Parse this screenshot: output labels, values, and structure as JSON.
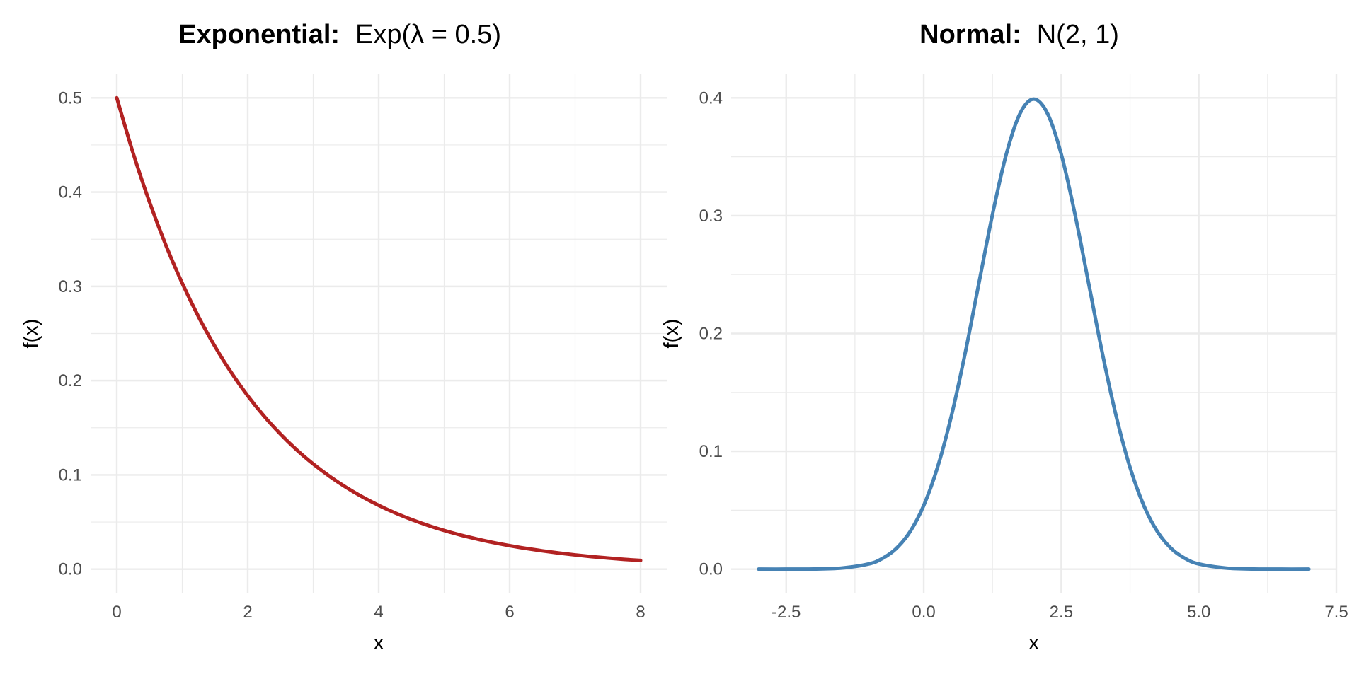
{
  "chart_data": [
    {
      "type": "line",
      "title": "Exponential:",
      "title_math": "Exp(λ = 0.5)",
      "xlabel": "x",
      "ylabel": "f(x)",
      "xlim": [
        -0.4,
        8.4
      ],
      "ylim": [
        -0.025,
        0.525
      ],
      "xticks": [
        0,
        2,
        4,
        6,
        8
      ],
      "xtick_labels": [
        "0",
        "2",
        "4",
        "6",
        "8"
      ],
      "yticks": [
        0.0,
        0.1,
        0.2,
        0.3,
        0.4,
        0.5
      ],
      "ytick_labels": [
        "0.0",
        "0.1",
        "0.2",
        "0.3",
        "0.4",
        "0.5"
      ],
      "grid": true,
      "legend": "none",
      "color": "#b22222",
      "series": [
        {
          "x": [
            0,
            0.25,
            0.5,
            0.75,
            1,
            1.25,
            1.5,
            1.75,
            2,
            2.25,
            2.5,
            2.75,
            3,
            3.25,
            3.5,
            3.75,
            4,
            4.25,
            4.5,
            4.75,
            5,
            5.25,
            5.5,
            5.75,
            6,
            6.25,
            6.5,
            6.75,
            7,
            7.25,
            7.5,
            7.75,
            8
          ],
          "y": [
            0.5,
            0.4412,
            0.3894,
            0.3436,
            0.3033,
            0.2676,
            0.2362,
            0.2084,
            0.1839,
            0.1623,
            0.1433,
            0.1264,
            0.1116,
            0.0985,
            0.0869,
            0.0767,
            0.0677,
            0.0597,
            0.0527,
            0.0465,
            0.041,
            0.0362,
            0.032,
            0.0282,
            0.0249,
            0.022,
            0.0194,
            0.0171,
            0.0151,
            0.0133,
            0.0118,
            0.0104,
            0.0092
          ]
        }
      ]
    },
    {
      "type": "line",
      "title": "Normal:",
      "title_math": "N(2, 1)",
      "xlabel": "x",
      "ylabel": "f(x)",
      "xlim": [
        -3.5,
        7.5
      ],
      "ylim": [
        -0.02,
        0.42
      ],
      "xticks": [
        -2.5,
        0.0,
        2.5,
        5.0,
        7.5
      ],
      "xtick_labels": [
        "-2.5",
        "0.0",
        "2.5",
        "5.0",
        "7.5"
      ],
      "yticks": [
        0.0,
        0.1,
        0.2,
        0.3,
        0.4
      ],
      "ytick_labels": [
        "0.0",
        "0.1",
        "0.2",
        "0.3",
        "0.4"
      ],
      "grid": true,
      "legend": "none",
      "color": "#4682b4",
      "series": [
        {
          "x": [
            -3,
            -2.5,
            -2,
            -1.5,
            -1,
            -0.75,
            -0.5,
            -0.25,
            0,
            0.25,
            0.5,
            0.75,
            1,
            1.25,
            1.5,
            1.75,
            2,
            2.25,
            2.5,
            2.75,
            3,
            3.25,
            3.5,
            3.75,
            4,
            4.25,
            4.5,
            4.75,
            5,
            5.5,
            6,
            6.5,
            7
          ],
          "y": [
            0.0,
            0.0,
            0.0001,
            0.0009,
            0.0044,
            0.0091,
            0.0175,
            0.0317,
            0.054,
            0.0863,
            0.1295,
            0.1826,
            0.242,
            0.3011,
            0.3521,
            0.3867,
            0.3989,
            0.3867,
            0.3521,
            0.3011,
            0.242,
            0.1826,
            0.1295,
            0.0863,
            0.054,
            0.0317,
            0.0175,
            0.0091,
            0.0044,
            0.0009,
            0.0001,
            0.0,
            0.0
          ]
        }
      ]
    }
  ]
}
